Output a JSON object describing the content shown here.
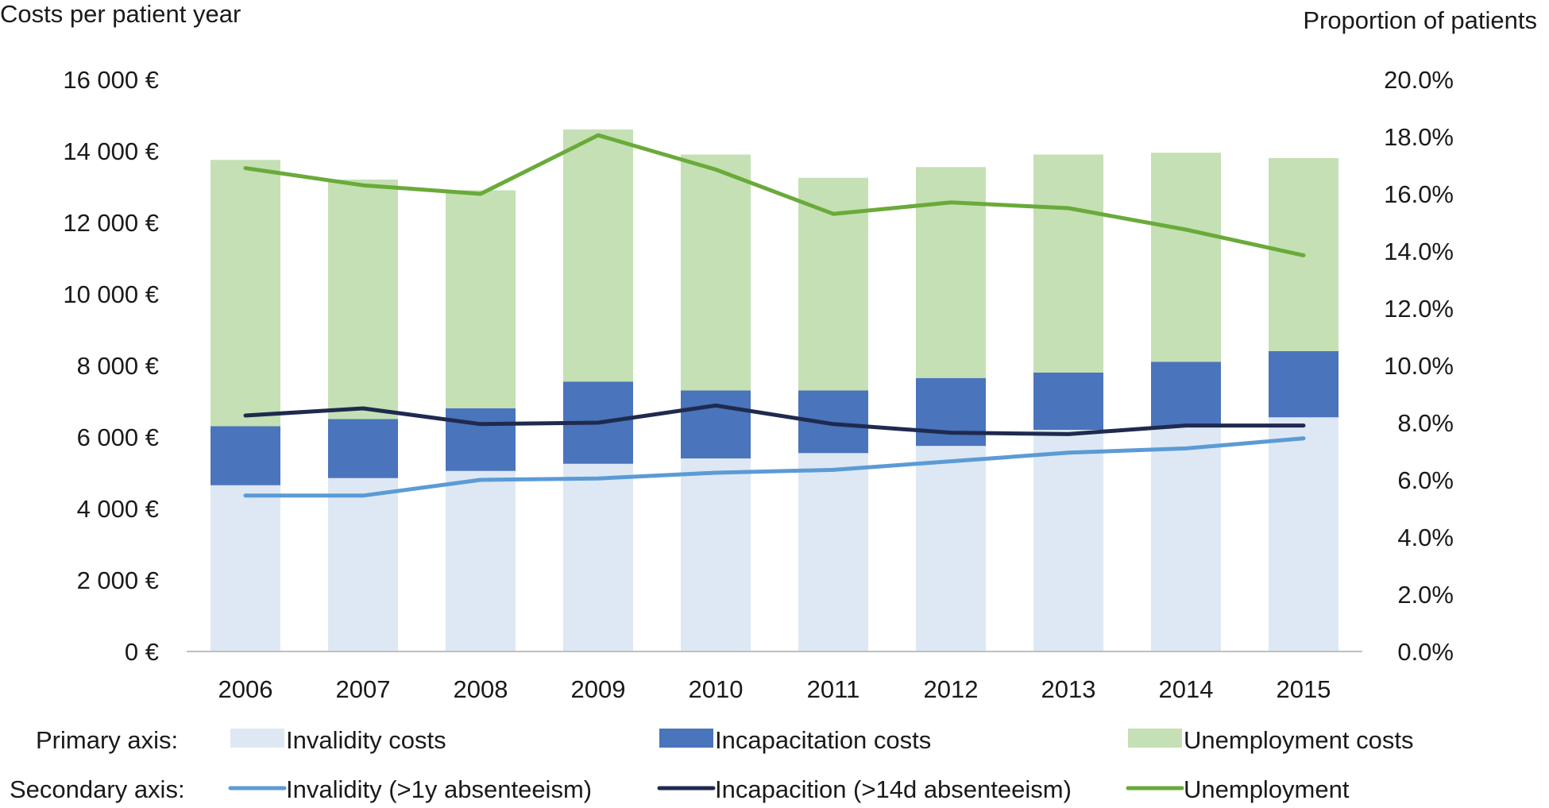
{
  "chart_data": {
    "type": "bar",
    "stacked": true,
    "categories": [
      "2006",
      "2007",
      "2008",
      "2009",
      "2010",
      "2011",
      "2012",
      "2013",
      "2014",
      "2015"
    ],
    "primary_axis": {
      "label": "Costs per patient year",
      "ylim": [
        0,
        16000
      ],
      "ticks": [
        "0 €",
        "2 000 €",
        "4 000 €",
        "6 000 €",
        "8 000 €",
        "10 000 €",
        "12 000 €",
        "14 000 €",
        "16 000 €"
      ]
    },
    "secondary_axis": {
      "label": "Proportion of patients",
      "ylim": [
        0,
        20
      ],
      "ticks": [
        "0.0%",
        "2.0%",
        "4.0%",
        "6.0%",
        "8.0%",
        "10.0%",
        "12.0%",
        "14.0%",
        "16.0%",
        "18.0%",
        "20.0%"
      ]
    },
    "bar_series": [
      {
        "name": "Invalidity costs",
        "color": "#dde8f4",
        "values": [
          4650,
          4850,
          5050,
          5250,
          5400,
          5550,
          5750,
          6200,
          6300,
          6550
        ]
      },
      {
        "name": "Incapacitation costs",
        "color": "#4a74bc",
        "values": [
          1650,
          1650,
          1750,
          2300,
          1900,
          1750,
          1900,
          1600,
          1800,
          1850
        ]
      },
      {
        "name": "Unemployment costs",
        "color": "#c5e0b4",
        "values": [
          7450,
          6700,
          6100,
          7050,
          6600,
          5950,
          5900,
          6100,
          5850,
          5400
        ]
      }
    ],
    "line_series": [
      {
        "name": "Invalidity (>1y absenteeism)",
        "color": "#5b9bd5",
        "values": [
          5.45,
          5.45,
          6.0,
          6.05,
          6.25,
          6.35,
          6.65,
          6.95,
          7.1,
          7.45
        ]
      },
      {
        "name": "Incapacition (>14d absenteeism)",
        "color": "#1f2a4f",
        "values": [
          8.25,
          8.5,
          7.95,
          8.0,
          8.6,
          7.95,
          7.65,
          7.6,
          7.9,
          7.9
        ]
      },
      {
        "name": "Unemployment",
        "color": "#6aaa3a",
        "values": [
          16.9,
          16.3,
          16.0,
          18.05,
          16.85,
          15.3,
          15.7,
          15.5,
          14.75,
          13.85
        ]
      }
    ],
    "legend": {
      "placement": "bottom",
      "primary_label": "Primary axis:",
      "secondary_label": "Secondary axis:"
    }
  }
}
